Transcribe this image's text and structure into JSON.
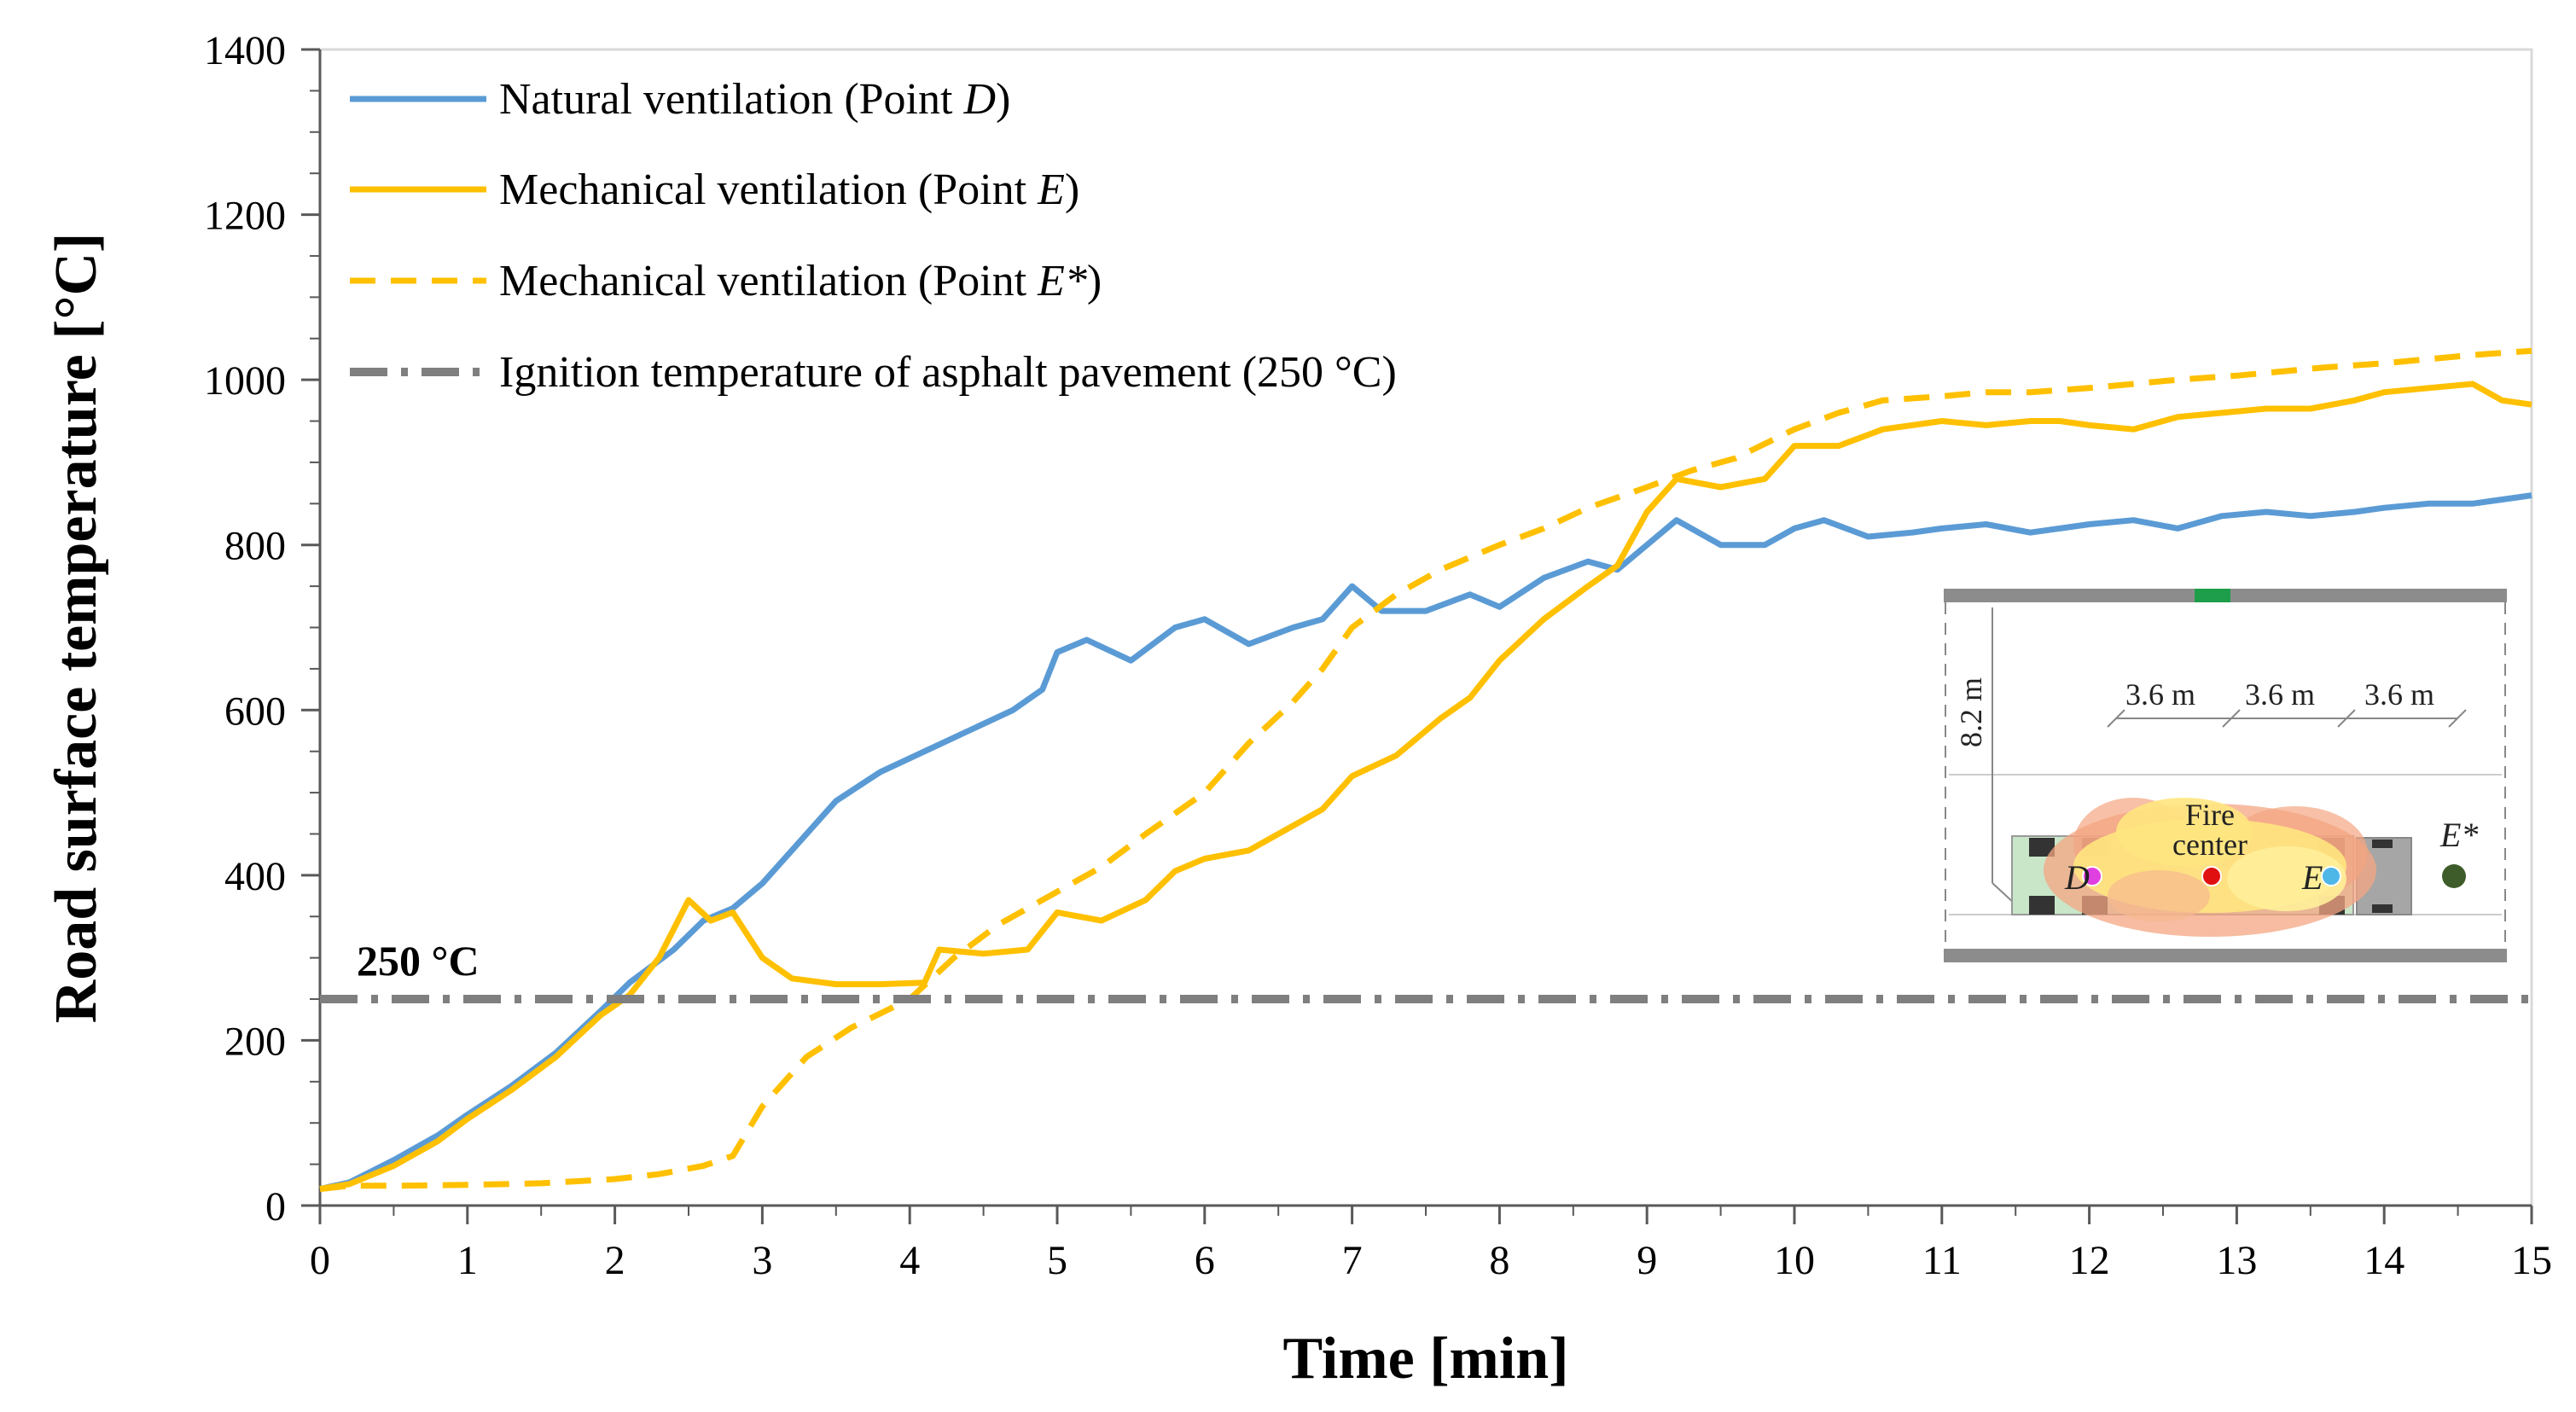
{
  "chart_data": {
    "type": "line",
    "title": "",
    "xlabel": "Time [min]",
    "ylabel": "Road surface temperature [°C]",
    "xlim": [
      0,
      15
    ],
    "ylim": [
      0,
      1400
    ],
    "xticks": [
      0,
      1,
      2,
      3,
      4,
      5,
      6,
      7,
      8,
      9,
      10,
      11,
      12,
      13,
      14,
      15
    ],
    "yticks": [
      0,
      200,
      400,
      600,
      800,
      1000,
      1200,
      1400
    ],
    "grid": false,
    "legend_position": "top-left",
    "series": [
      {
        "name": "natural",
        "legend_prefix": "Natural ventilation (Point ",
        "legend_point": "D",
        "legend_suffix": ")",
        "color": "#5B9BD5",
        "style": "solid",
        "x": [
          0,
          0.2,
          0.5,
          0.8,
          1.0,
          1.3,
          1.6,
          1.9,
          2.1,
          2.4,
          2.6,
          2.8,
          3.0,
          3.2,
          3.5,
          3.8,
          4.1,
          4.4,
          4.7,
          4.9,
          5.0,
          5.2,
          5.5,
          5.8,
          6.0,
          6.3,
          6.6,
          6.8,
          7.0,
          7.2,
          7.5,
          7.8,
          8.0,
          8.3,
          8.6,
          8.8,
          9.0,
          9.2,
          9.5,
          9.8,
          10.0,
          10.2,
          10.5,
          10.8,
          11.0,
          11.3,
          11.6,
          11.8,
          12.0,
          12.3,
          12.6,
          12.9,
          13.2,
          13.5,
          13.8,
          14.0,
          14.3,
          14.6,
          14.8,
          15.0
        ],
        "y": [
          20,
          28,
          55,
          85,
          110,
          145,
          185,
          235,
          270,
          310,
          345,
          360,
          390,
          430,
          490,
          525,
          550,
          575,
          600,
          625,
          670,
          685,
          660,
          700,
          710,
          680,
          700,
          710,
          750,
          720,
          720,
          740,
          725,
          760,
          780,
          770,
          800,
          830,
          800,
          800,
          820,
          830,
          810,
          815,
          820,
          825,
          815,
          820,
          825,
          830,
          820,
          835,
          840,
          835,
          840,
          845,
          850,
          850,
          855,
          860
        ]
      },
      {
        "name": "mechanical",
        "legend_prefix": "Mechanical ventilation (Point ",
        "legend_point": "E",
        "legend_suffix": ")",
        "color": "#FFC000",
        "style": "solid",
        "x": [
          0,
          0.2,
          0.5,
          0.8,
          1.0,
          1.3,
          1.6,
          1.9,
          2.1,
          2.3,
          2.5,
          2.65,
          2.8,
          3.0,
          3.2,
          3.5,
          3.8,
          4.1,
          4.2,
          4.5,
          4.8,
          5.0,
          5.3,
          5.6,
          5.8,
          6.0,
          6.3,
          6.6,
          6.8,
          7.0,
          7.3,
          7.6,
          7.8,
          8.0,
          8.3,
          8.6,
          8.8,
          9.0,
          9.2,
          9.5,
          9.8,
          10.0,
          10.3,
          10.6,
          10.8,
          11.0,
          11.3,
          11.6,
          11.8,
          12.0,
          12.3,
          12.6,
          12.9,
          13.2,
          13.5,
          13.8,
          14.0,
          14.3,
          14.6,
          14.8,
          15.0
        ],
        "y": [
          20,
          26,
          48,
          78,
          105,
          140,
          180,
          230,
          255,
          300,
          370,
          345,
          355,
          300,
          275,
          268,
          268,
          270,
          310,
          305,
          310,
          355,
          345,
          370,
          405,
          420,
          430,
          460,
          480,
          520,
          545,
          590,
          615,
          660,
          710,
          750,
          775,
          840,
          880,
          870,
          880,
          920,
          920,
          940,
          945,
          950,
          945,
          950,
          950,
          945,
          940,
          955,
          960,
          965,
          965,
          975,
          985,
          990,
          995,
          975,
          970
        ]
      },
      {
        "name": "mechanical-star",
        "legend_prefix": "Mechanical ventilation (Point ",
        "legend_point": "E*",
        "legend_suffix": ")",
        "color": "#FFC000",
        "style": "dashed",
        "x": [
          0,
          0.2,
          0.5,
          1.0,
          1.5,
          2.0,
          2.3,
          2.6,
          2.8,
          3.0,
          3.3,
          3.6,
          4.0,
          4.3,
          4.6,
          5.0,
          5.3,
          5.6,
          6.0,
          6.3,
          6.6,
          6.8,
          7.0,
          7.3,
          7.6,
          8.0,
          8.3,
          8.6,
          9.0,
          9.3,
          9.6,
          10.0,
          10.3,
          10.6,
          11.0,
          11.3,
          11.6,
          12.0,
          12.3,
          12.6,
          13.0,
          13.3,
          13.6,
          14.0,
          14.3,
          14.6,
          15.0
        ],
        "y": [
          20,
          24,
          24,
          25,
          27,
          32,
          38,
          48,
          60,
          120,
          180,
          215,
          250,
          300,
          340,
          380,
          410,
          450,
          500,
          560,
          610,
          650,
          700,
          740,
          770,
          800,
          820,
          845,
          870,
          890,
          905,
          940,
          960,
          975,
          980,
          985,
          985,
          990,
          995,
          1000,
          1005,
          1010,
          1015,
          1020,
          1025,
          1030,
          1035
        ]
      },
      {
        "name": "ignition",
        "legend_prefix": "Ignition temperature of asphalt pavement (250 °C)",
        "legend_point": "",
        "legend_suffix": "",
        "color": "#7F7F7F",
        "style": "dashdot",
        "x": [
          0,
          15
        ],
        "y": [
          250,
          250
        ]
      }
    ],
    "annotations": {
      "threshold_label": "250 °C"
    },
    "inset": {
      "height_label": "8.2 m",
      "spacing_labels": [
        "3.6 m",
        "3.6 m",
        "3.6 m"
      ],
      "fire_label_1": "Fire",
      "fire_label_2": "center",
      "point_d": "D",
      "point_e": "E",
      "point_estar": "E*"
    }
  }
}
